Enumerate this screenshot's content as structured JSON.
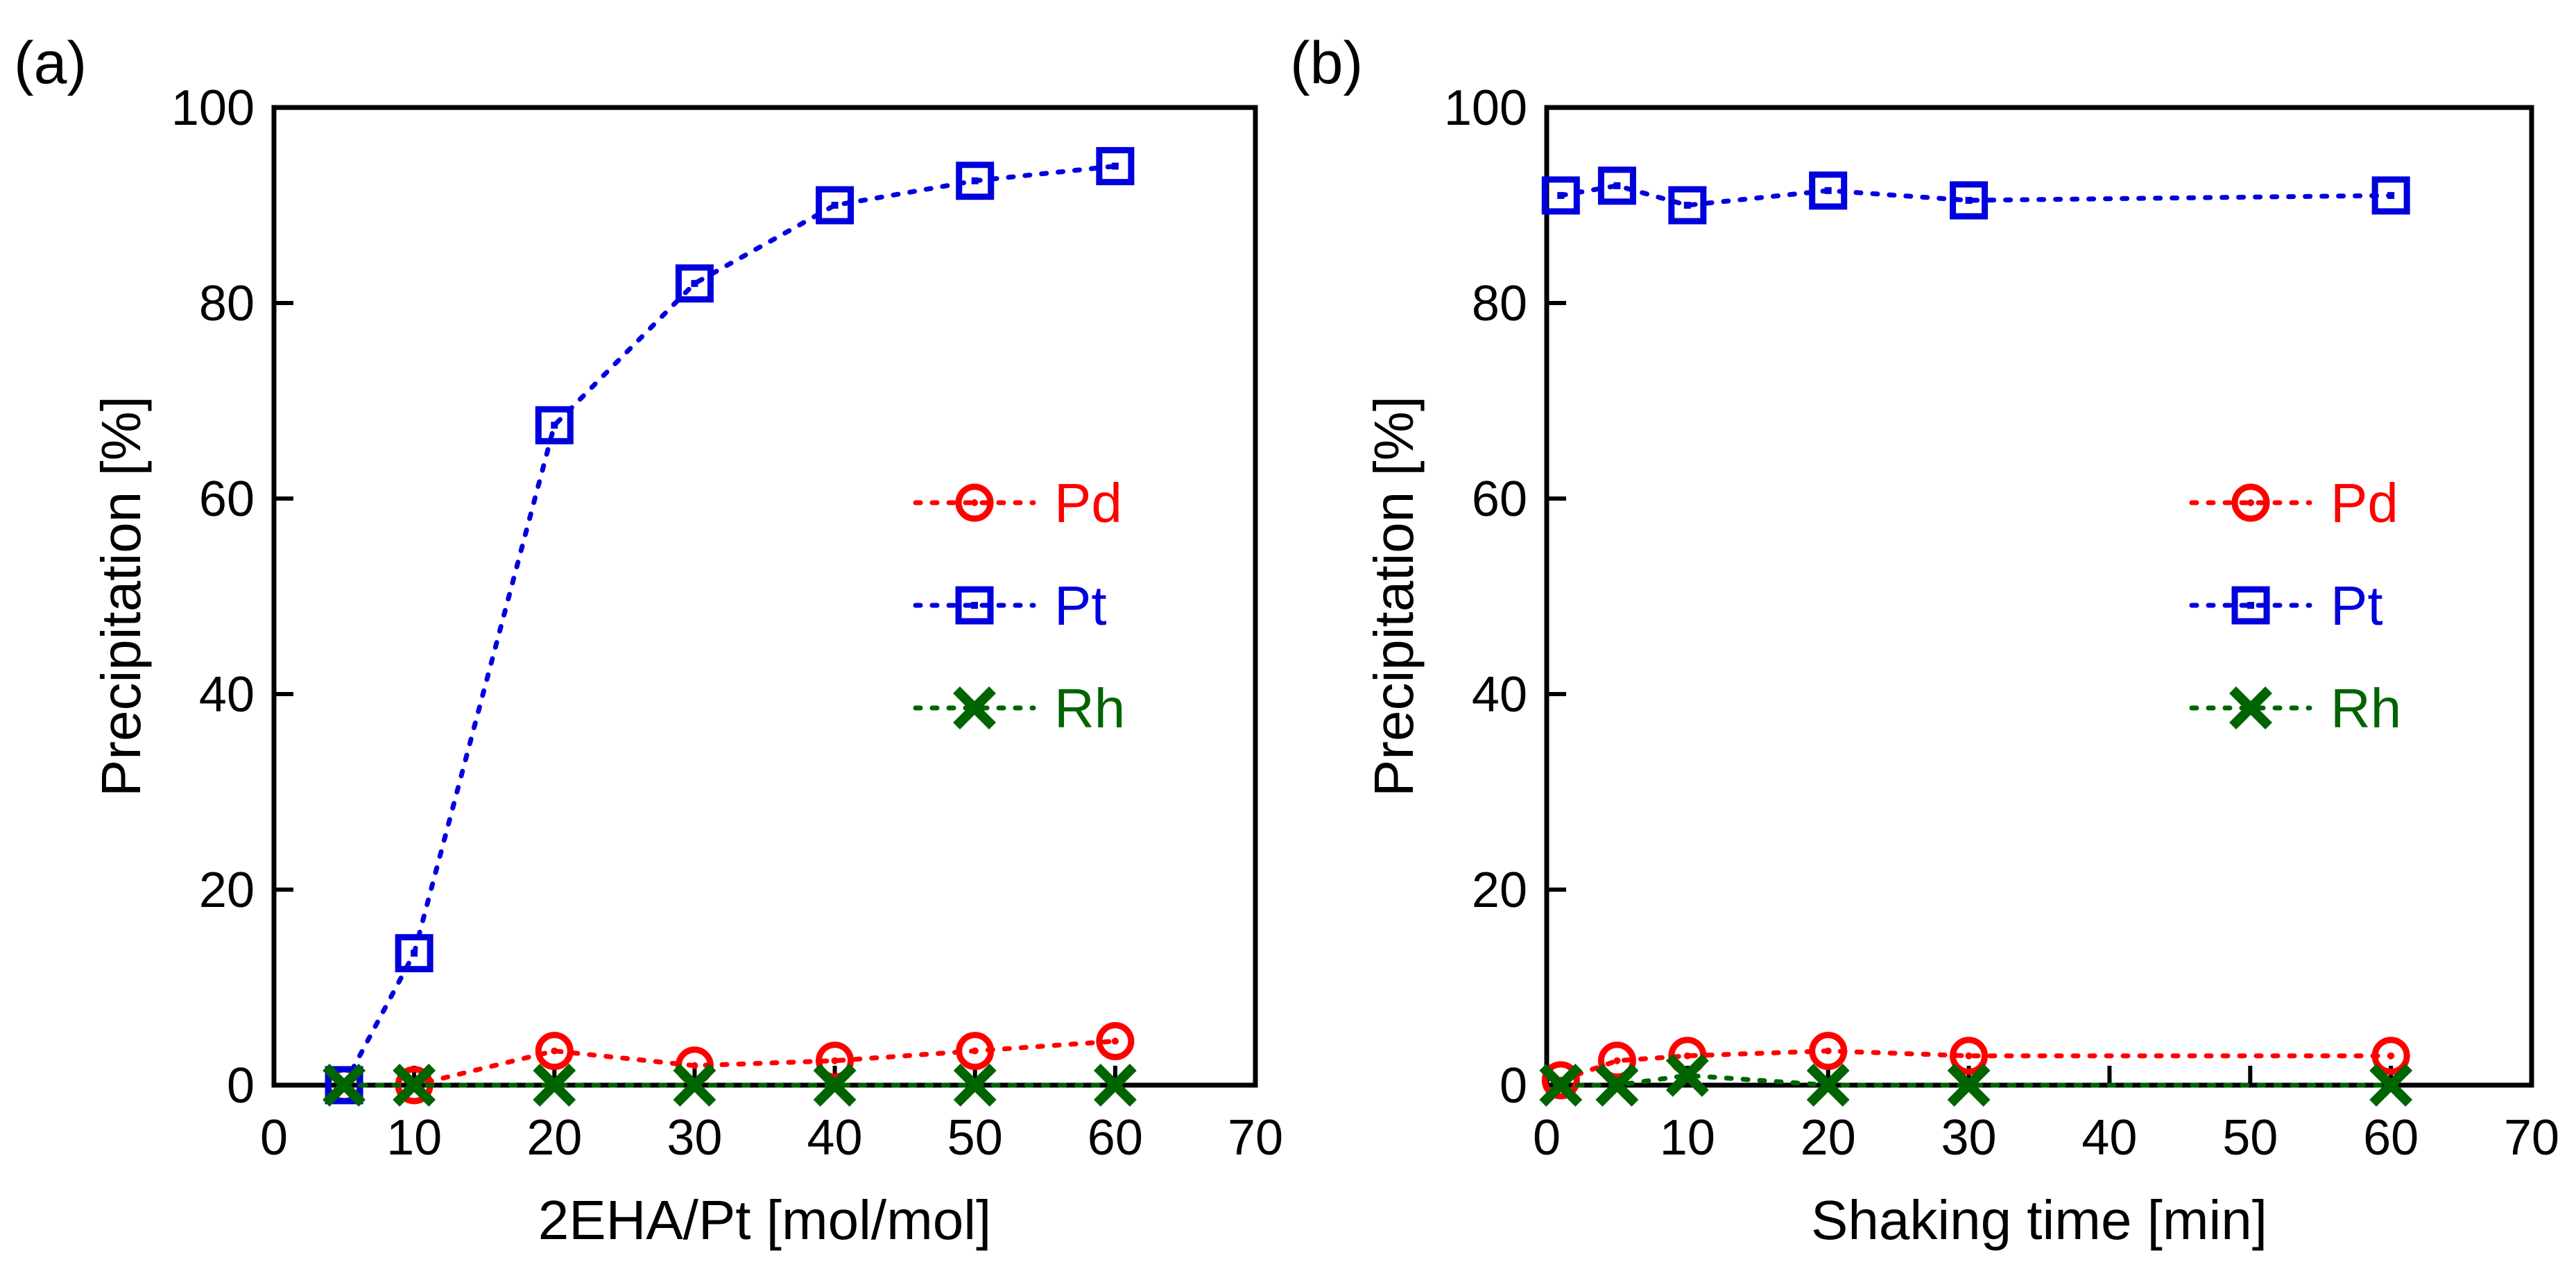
{
  "chart_data": [
    {
      "type": "line",
      "panel_label": "(a)",
      "title": "",
      "xlabel": "2EHA/Pt [mol/mol]",
      "ylabel": "Precipitation [%]",
      "xlim": [
        0,
        70
      ],
      "ylim": [
        0,
        100
      ],
      "xticks": [
        0,
        10,
        20,
        30,
        40,
        50,
        60,
        70
      ],
      "yticks": [
        0,
        20,
        40,
        60,
        80,
        100
      ],
      "legend_position": "center-right",
      "series": [
        {
          "name": "Pd",
          "color": "#ff0000",
          "marker": "circle",
          "x": [
            5,
            10,
            20,
            30,
            40,
            50,
            60
          ],
          "y": [
            0,
            0,
            3.5,
            2,
            2.5,
            3.5,
            4.5
          ]
        },
        {
          "name": "Pt",
          "color": "#0000dd",
          "marker": "square",
          "x": [
            5,
            10,
            20,
            30,
            40,
            50,
            60
          ],
          "y": [
            0,
            13.5,
            67.5,
            82,
            90,
            92.5,
            94
          ]
        },
        {
          "name": "Rh",
          "color": "#006400",
          "marker": "x",
          "x": [
            5,
            10,
            20,
            30,
            40,
            50,
            60
          ],
          "y": [
            0,
            0,
            0,
            0,
            0,
            0,
            0
          ]
        }
      ]
    },
    {
      "type": "line",
      "panel_label": "(b)",
      "title": "",
      "xlabel": "Shaking time [min]",
      "ylabel": "Precipitation [%]",
      "xlim": [
        0,
        70
      ],
      "ylim": [
        0,
        100
      ],
      "xticks": [
        0,
        10,
        20,
        30,
        40,
        50,
        60,
        70
      ],
      "yticks": [
        0,
        20,
        40,
        60,
        80,
        100
      ],
      "legend_position": "center-right",
      "series": [
        {
          "name": "Pd",
          "color": "#ff0000",
          "marker": "circle",
          "x": [
            1,
            5,
            10,
            20,
            30,
            60
          ],
          "y": [
            0.5,
            2.5,
            3,
            3.5,
            3,
            3
          ]
        },
        {
          "name": "Pt",
          "color": "#0000dd",
          "marker": "square",
          "x": [
            1,
            5,
            10,
            20,
            30,
            60
          ],
          "y": [
            91,
            92,
            90,
            91.5,
            90.5,
            91
          ]
        },
        {
          "name": "Rh",
          "color": "#006400",
          "marker": "x",
          "x": [
            1,
            5,
            10,
            20,
            30,
            60
          ],
          "y": [
            0,
            0,
            1,
            0,
            0,
            0
          ]
        }
      ]
    }
  ]
}
